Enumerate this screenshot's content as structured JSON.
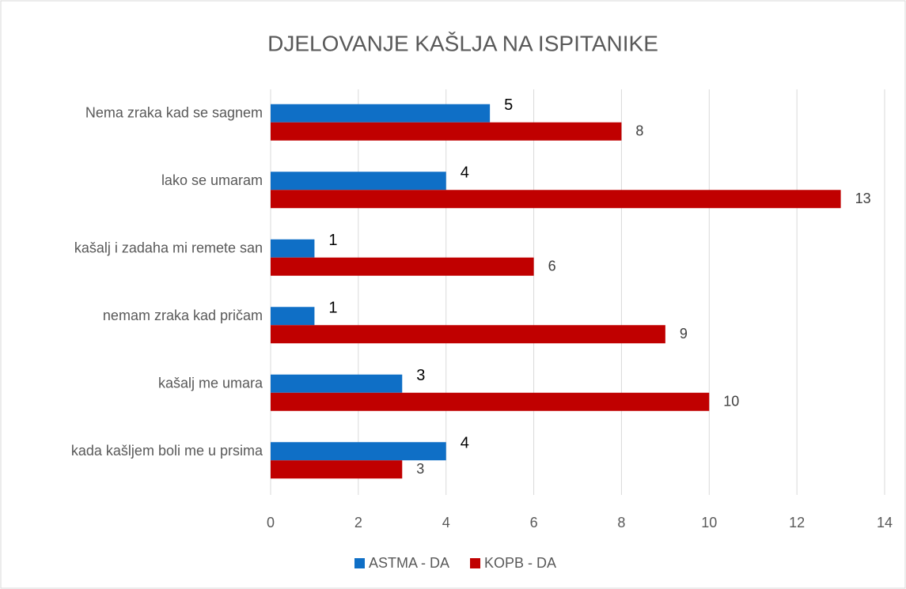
{
  "chart_data": {
    "type": "hbar",
    "title": "DJELOVANJE KAŠLJA NA ISPITANIKE",
    "categories": [
      "Nema zraka kad se sagnem",
      "lako se umaram",
      "kašalj i zadaha mi remete san",
      "nemam zraka kad pričam",
      "kašalj me umara",
      "kada kašljem boli me u prsima"
    ],
    "series": [
      {
        "name": "ASTMA - DA",
        "color": "#0f6fc6",
        "values": [
          5,
          4,
          1,
          1,
          3,
          4
        ]
      },
      {
        "name": "KOPB - DA",
        "color": "#c00000",
        "values": [
          8,
          13,
          6,
          9,
          10,
          3
        ]
      }
    ],
    "xlim": [
      0,
      14
    ],
    "xticks": [
      0,
      2,
      4,
      6,
      8,
      10,
      12,
      14
    ],
    "grid": true,
    "legend": "bottom"
  }
}
